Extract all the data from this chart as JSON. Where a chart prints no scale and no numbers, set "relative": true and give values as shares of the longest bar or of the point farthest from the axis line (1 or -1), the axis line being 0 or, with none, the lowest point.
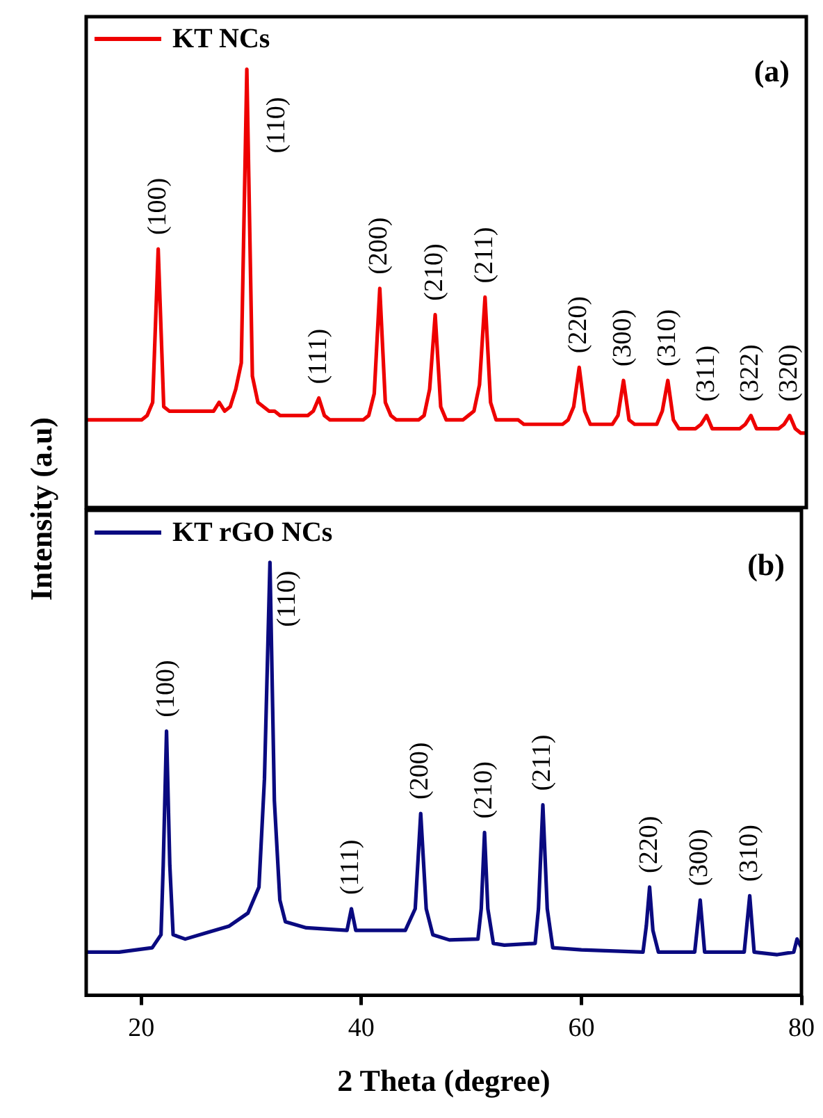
{
  "chart_data": [
    {
      "type": "line",
      "relative": true,
      "ylabel": "Intensity (a.u)",
      "tick_labels": false,
      "legend": "top left",
      "categories": [
        null,
        null,
        null,
        null,
        null,
        null,
        null,
        null,
        null,
        null,
        null,
        null,
        null,
        null,
        null,
        null,
        null,
        null,
        null,
        null,
        null,
        null,
        null,
        null,
        null,
        null,
        null,
        null,
        null,
        null,
        null,
        null,
        null,
        null,
        null,
        null,
        null,
        null,
        null,
        null,
        null,
        null,
        null,
        null,
        null,
        null,
        null,
        null,
        null,
        null,
        null,
        null,
        null,
        null,
        null,
        null,
        null,
        null,
        null,
        null,
        null,
        null,
        null,
        null,
        null,
        null,
        null,
        null,
        null,
        null,
        null,
        null,
        null,
        null,
        null,
        null,
        null,
        null,
        null,
        null,
        null,
        null,
        null,
        null,
        null,
        null,
        null,
        null,
        null,
        null,
        null,
        null,
        null,
        null,
        null,
        null,
        null,
        null,
        null,
        null,
        null,
        null,
        null,
        null,
        null,
        null,
        null,
        null,
        null,
        null,
        null,
        null,
        null,
        null,
        null,
        null,
        null,
        null,
        null,
        null,
        null,
        null,
        null,
        null,
        null,
        null,
        null,
        null,
        null,
        null,
        null
      ],
      "series": [
        {
          "name": "KT NCs",
          "color": "#ee0000",
          "values": [
            0.2,
            0.2,
            0.2,
            0.2,
            0.2,
            0.2,
            0.2,
            0.2,
            0.2,
            0.2,
            0.2,
            0.21,
            0.24,
            0.59,
            0.23,
            0.22,
            0.22,
            0.22,
            0.22,
            0.22,
            0.22,
            0.22,
            0.22,
            0.22,
            0.24,
            0.22,
            0.23,
            0.27,
            0.33,
            1.0,
            0.3,
            0.24,
            0.23,
            0.22,
            0.22,
            0.21,
            0.21,
            0.21,
            0.21,
            0.21,
            0.21,
            0.22,
            0.25,
            0.21,
            0.2,
            0.2,
            0.2,
            0.2,
            0.2,
            0.2,
            0.2,
            0.21,
            0.26,
            0.5,
            0.24,
            0.21,
            0.2,
            0.2,
            0.2,
            0.2,
            0.2,
            0.21,
            0.27,
            0.44,
            0.23,
            0.2,
            0.2,
            0.2,
            0.2,
            0.21,
            0.22,
            0.28,
            0.48,
            0.24,
            0.2,
            0.2,
            0.2,
            0.2,
            0.2,
            0.19,
            0.19,
            0.19,
            0.19,
            0.19,
            0.19,
            0.19,
            0.19,
            0.2,
            0.23,
            0.32,
            0.22,
            0.19,
            0.19,
            0.19,
            0.19,
            0.19,
            0.21,
            0.29,
            0.2,
            0.19,
            0.19,
            0.19,
            0.19,
            0.19,
            0.22,
            0.29,
            0.2,
            0.18,
            0.18,
            0.18,
            0.18,
            0.19,
            0.21,
            0.18,
            0.18,
            0.18,
            0.18,
            0.18,
            0.18,
            0.19,
            0.21,
            0.18,
            0.18,
            0.18,
            0.18,
            0.18,
            0.19,
            0.21,
            0.18,
            0.17,
            0.17
          ]
        }
      ],
      "annotations": [
        "(a)",
        {
          "text": "(100)",
          "y": 0.59
        },
        "(110)",
        {
          "text": "(111)",
          "y": 0.25
        },
        {
          "text": "(200)",
          "y": 0.5
        },
        {
          "text": "(210)",
          "y": 0.44
        },
        {
          "text": "(211)",
          "y": 0.48
        },
        {
          "text": "(220)",
          "y": 0.32
        },
        {
          "text": "(300)",
          "y": 0.29
        },
        {
          "text": "(310)",
          "y": 0.29
        },
        {
          "text": "(311)",
          "y": 0.21
        },
        {
          "text": "(322)",
          "y": 0.21
        },
        {
          "text": "(320)",
          "y": 0.21
        }
      ]
    },
    {
      "type": "line",
      "relative": true,
      "xlabel": "2 Theta (degree)",
      "xlim": [
        15,
        80
      ],
      "xticks": [
        20,
        40,
        60,
        80
      ],
      "tick_labels": "x",
      "legend": "top left",
      "series": [
        {
          "name": "KT rGO NCs",
          "color": "#0a0a80",
          "x": [
            15,
            18,
            21,
            21.8,
            22.0,
            22.3,
            22.6,
            22.9,
            24,
            26,
            28,
            29.7,
            30.7,
            31.2,
            31.7,
            32.1,
            32.6,
            33.1,
            35,
            38.7,
            39.1,
            39.5,
            41,
            44,
            44.9,
            45.4,
            45.9,
            46.5,
            48,
            50.6,
            50.9,
            51.2,
            51.5,
            52,
            53,
            55.8,
            56.1,
            56.5,
            56.9,
            57.4,
            60,
            65.6,
            65.9,
            66.2,
            66.5,
            67,
            70.3,
            70.8,
            71.2,
            74.8,
            75.3,
            75.7,
            77.8,
            79.3,
            79.6,
            80
          ],
          "values": [
            0.1,
            0.1,
            0.11,
            0.14,
            0.3,
            0.61,
            0.3,
            0.14,
            0.13,
            0.145,
            0.16,
            0.19,
            0.25,
            0.5,
            1.0,
            0.45,
            0.22,
            0.17,
            0.156,
            0.15,
            0.2,
            0.15,
            0.15,
            0.15,
            0.2,
            0.42,
            0.2,
            0.14,
            0.128,
            0.13,
            0.2,
            0.376,
            0.2,
            0.12,
            0.116,
            0.12,
            0.2,
            0.44,
            0.2,
            0.11,
            0.105,
            0.1,
            0.16,
            0.25,
            0.15,
            0.1,
            0.1,
            0.22,
            0.1,
            0.1,
            0.23,
            0.1,
            0.094,
            0.1,
            0.13,
            0.11
          ]
        }
      ],
      "annotations": [
        "(b)",
        {
          "text": "(100)",
          "x": 22.3,
          "y": 0.61
        },
        {
          "text": "(110)",
          "x": 31.7,
          "y": 1.0
        },
        {
          "text": "(111)",
          "x": 39.1,
          "y": 0.2
        },
        {
          "text": "(200)",
          "x": 45.4,
          "y": 0.42
        },
        {
          "text": "(210)",
          "x": 51.2,
          "y": 0.376
        },
        {
          "text": "(211)",
          "x": 56.5,
          "y": 0.44
        },
        {
          "text": "(220)",
          "x": 66.2,
          "y": 0.25
        },
        {
          "text": "(300)",
          "x": 70.8,
          "y": 0.22
        },
        {
          "text": "(310)",
          "x": 75.3,
          "y": 0.23
        }
      ]
    }
  ]
}
